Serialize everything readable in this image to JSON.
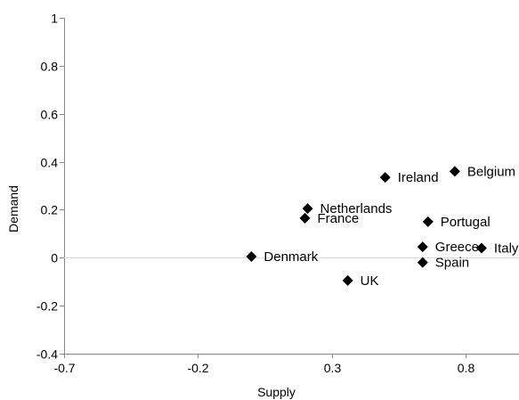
{
  "chart_data": {
    "type": "scatter",
    "title": "",
    "xlabel": "Supply",
    "ylabel": "Demand",
    "xlim": [
      -0.7,
      1.0
    ],
    "ylim": [
      -0.4,
      1.0
    ],
    "x_ticks": [
      -0.7,
      -0.2,
      0.3,
      0.8
    ],
    "y_ticks": [
      -0.4,
      -0.2,
      0,
      0.2,
      0.4,
      0.6,
      0.8,
      1.0
    ],
    "x_tick_labels": [
      "-0.7",
      "-0.2",
      "0.3",
      "0.8"
    ],
    "y_tick_labels": [
      "-0.4",
      "-0.2",
      "0",
      "0.2",
      "0.4",
      "0.6",
      "0.8",
      "1"
    ],
    "grid": false,
    "marker": "diamond",
    "marker_color": "#000000",
    "points": [
      {
        "label": "Belgium",
        "x": 0.76,
        "y": 0.36
      },
      {
        "label": "Ireland",
        "x": 0.5,
        "y": 0.335
      },
      {
        "label": "Netherlands",
        "x": 0.21,
        "y": 0.205
      },
      {
        "label": "France",
        "x": 0.2,
        "y": 0.165
      },
      {
        "label": "Portugal",
        "x": 0.66,
        "y": 0.15
      },
      {
        "label": "Greece",
        "x": 0.64,
        "y": 0.045
      },
      {
        "label": "Italy",
        "x": 0.86,
        "y": 0.04
      },
      {
        "label": "Denmark",
        "x": 0.0,
        "y": 0.005
      },
      {
        "label": "Spain",
        "x": 0.64,
        "y": -0.02
      },
      {
        "label": "UK",
        "x": 0.36,
        "y": -0.095
      }
    ]
  }
}
